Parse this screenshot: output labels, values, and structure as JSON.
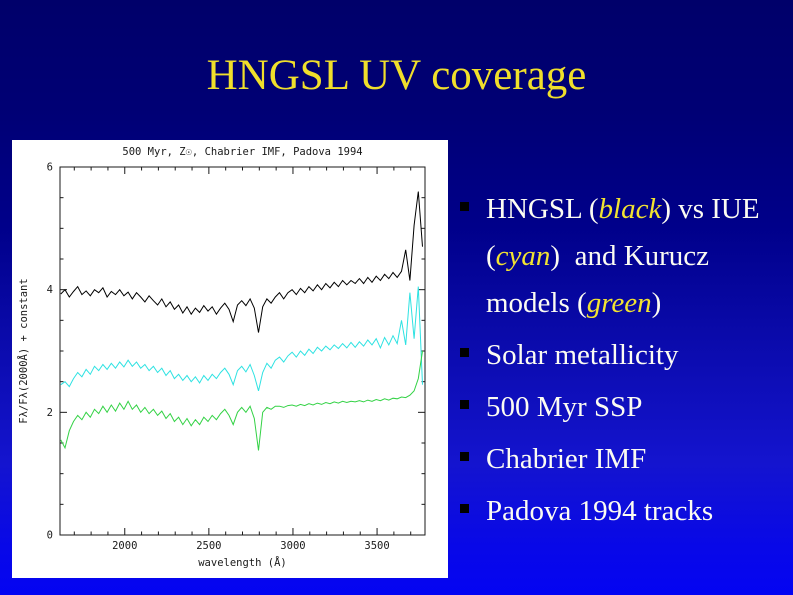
{
  "slide": {
    "title": "HNGSL UV coverage",
    "colors": {
      "title_yellow": "#f0df2b",
      "body_text": "#fcfcf2",
      "emphasis_yellow": "#f2e331",
      "bullet_marker": "#000000",
      "panel_background": "#ffffff",
      "background_top": "#00006a",
      "background_bottom": "#0404f2"
    }
  },
  "content": {
    "bullets": [
      {
        "lines": [
          [
            {
              "t": "HNGSL (",
              "em": false
            },
            {
              "t": "black",
              "em": true
            },
            {
              "t": ") vs IUE",
              "em": false
            }
          ],
          [
            {
              "t": "(",
              "em": false
            },
            {
              "t": "cyan",
              "em": true
            },
            {
              "t": ")  and Kurucz",
              "em": false
            }
          ],
          [
            {
              "t": "models (",
              "em": false
            },
            {
              "t": "green",
              "em": true
            },
            {
              "t": ")",
              "em": false
            }
          ]
        ]
      },
      {
        "lines": [
          [
            {
              "t": "Solar metallicity",
              "em": false
            }
          ]
        ]
      },
      {
        "lines": [
          [
            {
              "t": "500 Myr SSP",
              "em": false
            }
          ]
        ]
      },
      {
        "lines": [
          [
            {
              "t": "Chabrier IMF",
              "em": false
            }
          ]
        ]
      },
      {
        "lines": [
          [
            {
              "t": "Padova 1994 tracks",
              "em": false
            }
          ]
        ]
      }
    ]
  },
  "chart_data": {
    "type": "line",
    "title": "500 Myr, Z☉, Chabrier IMF, Padova 1994",
    "xlabel": "wavelength (Å)",
    "ylabel": "Fλ/Fλ(2000Å) + constant",
    "xlim": [
      1615,
      3785
    ],
    "ylim": [
      0,
      6
    ],
    "x_major_ticks": [
      2000,
      2500,
      3000,
      3500
    ],
    "x_minor_step": 100,
    "y_major_ticks": [
      0,
      2,
      4,
      6
    ],
    "y_minor_step": 0.5,
    "grid": false,
    "legend": "none",
    "x_start": 1620,
    "x_step": 25,
    "series": [
      {
        "name": "HNGSL",
        "color": "#000000",
        "values": [
          3.93,
          4.0,
          3.88,
          3.97,
          4.05,
          3.92,
          3.98,
          3.9,
          4.0,
          3.95,
          4.03,
          3.88,
          3.97,
          3.92,
          4.0,
          3.9,
          3.96,
          3.85,
          3.95,
          3.88,
          3.8,
          3.9,
          3.82,
          3.75,
          3.85,
          3.72,
          3.8,
          3.68,
          3.75,
          3.62,
          3.72,
          3.6,
          3.7,
          3.63,
          3.74,
          3.65,
          3.72,
          3.6,
          3.7,
          3.78,
          3.68,
          3.48,
          3.75,
          3.82,
          3.74,
          3.85,
          3.7,
          3.3,
          3.72,
          3.85,
          3.78,
          3.88,
          3.95,
          3.85,
          3.95,
          4.0,
          3.92,
          4.02,
          3.95,
          4.05,
          3.98,
          4.08,
          4.0,
          4.1,
          4.03,
          4.12,
          4.05,
          4.15,
          4.08,
          4.15,
          4.1,
          4.18,
          4.1,
          4.2,
          4.12,
          4.22,
          4.15,
          4.25,
          4.18,
          4.28,
          4.2,
          4.3,
          4.65,
          4.15,
          5.05,
          5.6,
          4.7
        ]
      },
      {
        "name": "IUE",
        "color": "#2ee2e2",
        "values": [
          2.45,
          2.5,
          2.42,
          2.55,
          2.65,
          2.58,
          2.7,
          2.62,
          2.75,
          2.68,
          2.78,
          2.7,
          2.8,
          2.72,
          2.82,
          2.74,
          2.85,
          2.75,
          2.82,
          2.72,
          2.78,
          2.68,
          2.75,
          2.65,
          2.72,
          2.6,
          2.68,
          2.55,
          2.62,
          2.52,
          2.6,
          2.5,
          2.58,
          2.48,
          2.6,
          2.52,
          2.62,
          2.55,
          2.65,
          2.72,
          2.62,
          2.45,
          2.68,
          2.75,
          2.66,
          2.78,
          2.6,
          2.35,
          2.65,
          2.8,
          2.72,
          2.85,
          2.9,
          2.82,
          2.92,
          2.98,
          2.9,
          3.0,
          2.93,
          3.03,
          2.96,
          3.06,
          3.0,
          3.08,
          3.02,
          3.1,
          3.04,
          3.12,
          3.05,
          3.14,
          3.06,
          3.15,
          3.08,
          3.18,
          3.1,
          3.2,
          3.05,
          3.22,
          3.1,
          3.25,
          3.12,
          3.5,
          3.1,
          3.95,
          3.2,
          4.05,
          2.45
        ]
      },
      {
        "name": "Kurucz",
        "color": "#33d245",
        "values": [
          1.55,
          1.42,
          1.7,
          1.85,
          1.95,
          1.88,
          2.0,
          1.92,
          2.05,
          1.98,
          2.1,
          2.0,
          2.12,
          2.02,
          2.15,
          2.05,
          2.18,
          2.05,
          2.12,
          2.0,
          2.08,
          1.98,
          2.05,
          1.95,
          2.02,
          1.9,
          1.98,
          1.85,
          1.92,
          1.8,
          1.9,
          1.78,
          1.88,
          1.8,
          1.92,
          1.85,
          1.95,
          1.88,
          1.98,
          2.05,
          1.95,
          1.8,
          2.0,
          2.08,
          2.0,
          2.1,
          1.9,
          1.38,
          2.0,
          2.08,
          2.05,
          2.1,
          2.1,
          2.08,
          2.11,
          2.12,
          2.1,
          2.13,
          2.11,
          2.14,
          2.12,
          2.15,
          2.13,
          2.16,
          2.14,
          2.17,
          2.15,
          2.18,
          2.16,
          2.18,
          2.17,
          2.19,
          2.17,
          2.2,
          2.18,
          2.21,
          2.19,
          2.22,
          2.2,
          2.23,
          2.22,
          2.25,
          2.24,
          2.28,
          2.35,
          2.55,
          3.0
        ]
      }
    ]
  }
}
